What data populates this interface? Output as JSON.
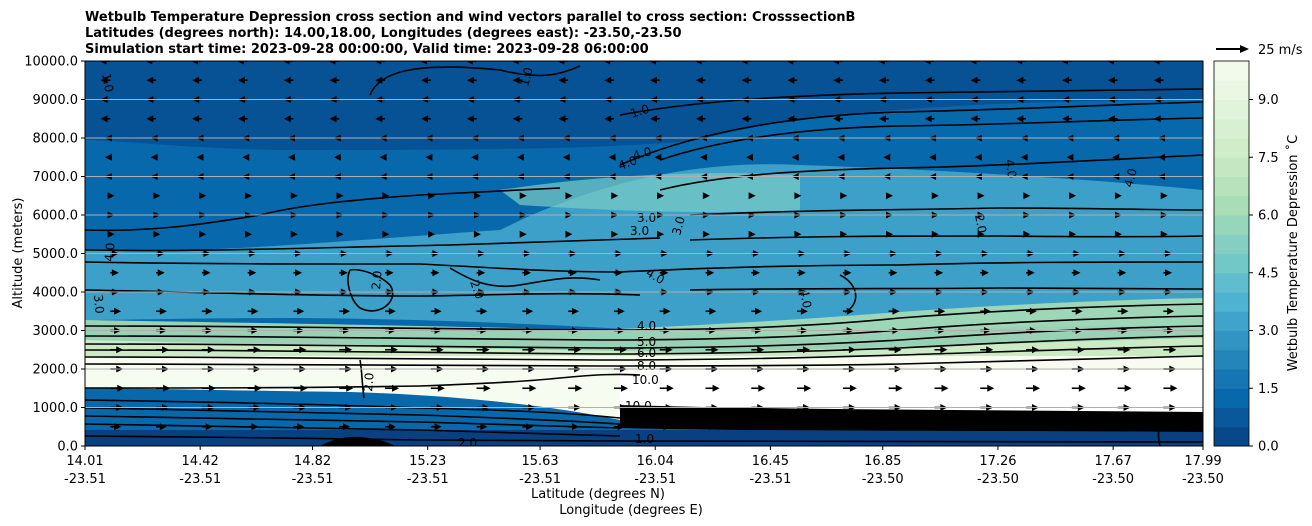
{
  "chart_data": {
    "type": "heatmap",
    "title_lines": [
      "Wetbulb Temperature Depression cross section and wind vectors parallel to cross section: CrosssectionB",
      "Latitudes (degrees north): 14.00,18.00, Longitudes (degrees east): -23.50,-23.50",
      "Simulation start time: 2023-09-28 00:00:00, Valid time: 2023-09-28 06:00:00"
    ],
    "ylabel": "Altitude (meters)",
    "xlabel_lat": "Latitude (degrees N)",
    "xlabel_lon": "Longitude (degrees E)",
    "ylim": [
      0,
      10000
    ],
    "yticks": [
      "0.0",
      "1000.0",
      "2000.0",
      "3000.0",
      "4000.0",
      "5000.0",
      "6000.0",
      "7000.0",
      "8000.0",
      "9000.0",
      "10000.0"
    ],
    "ytick_values": [
      0,
      1000,
      2000,
      3000,
      4000,
      5000,
      6000,
      7000,
      8000,
      9000,
      10000
    ],
    "xticks_lat": [
      "14.01",
      "14.42",
      "14.82",
      "15.23",
      "15.63",
      "16.04",
      "16.45",
      "16.85",
      "17.26",
      "17.67",
      "17.99"
    ],
    "xticks_lon": [
      "-23.51",
      "-23.51",
      "-23.51",
      "-23.51",
      "-23.51",
      "-23.51",
      "-23.51",
      "-23.50",
      "-23.50",
      "-23.50",
      "-23.50"
    ],
    "xtick_values": [
      14.01,
      14.42,
      14.82,
      15.23,
      15.63,
      16.04,
      16.45,
      16.85,
      17.26,
      17.67,
      17.99
    ],
    "xlim": [
      14.01,
      17.99
    ],
    "grid": "horizontal",
    "colorbar": {
      "label": "Wetbulb Temperature Depression ˚C",
      "range": [
        0,
        10
      ],
      "ticks": [
        "0.0",
        "1.5",
        "3.0",
        "4.5",
        "6.0",
        "7.5",
        "9.0"
      ],
      "tick_values": [
        0,
        1.5,
        3.0,
        4.5,
        6.0,
        7.5,
        9.0
      ],
      "colormap": [
        "#084081",
        "#0868ac",
        "#2b8cbe",
        "#4eb3d3",
        "#7bccc4",
        "#a8ddb5",
        "#ccebc5",
        "#e0f3db",
        "#f7fcf0"
      ]
    },
    "wind_key_label": "25 m/s",
    "contour_levels": [
      "1.0",
      "2.0",
      "3.0",
      "4.0",
      "5.0",
      "6.0",
      "7.0",
      "8.0",
      "10.0"
    ],
    "wind_bands": [
      {
        "altitude": 250,
        "direction": "east",
        "speed": 10
      },
      {
        "altitude": 1000,
        "direction": "east",
        "speed": 12
      },
      {
        "altitude": 1500,
        "direction": "east",
        "speed": 13
      },
      {
        "altitude": 2000,
        "direction": "east",
        "speed": 12
      },
      {
        "altitude": 3000,
        "direction": "east",
        "speed": 10
      },
      {
        "altitude": 4500,
        "direction": "east",
        "speed": 8
      },
      {
        "altitude": 6000,
        "direction": "east",
        "speed": 4
      },
      {
        "altitude": 7500,
        "direction": "west",
        "speed": 5
      },
      {
        "altitude": 9000,
        "direction": "west",
        "speed": 9
      },
      {
        "altitude": 10000,
        "direction": "west",
        "speed": 10
      }
    ]
  }
}
